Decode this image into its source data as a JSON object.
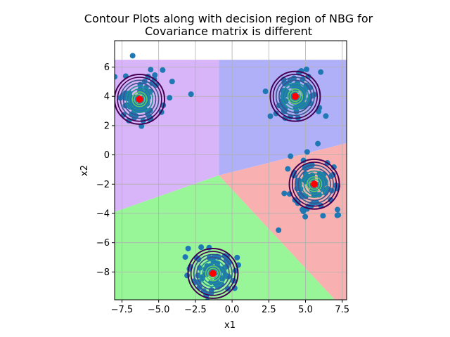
{
  "chart_data": {
    "type": "scatter",
    "title_line1": "Contour Plots along with decision region of NBG for",
    "title_line2": "Covariance matrix is different",
    "xlabel": "x1",
    "ylabel": "x2",
    "xlim": [
      -8.0,
      7.8
    ],
    "ylim": [
      -9.9,
      7.8
    ],
    "region_ylim_top": 6.5,
    "xticks": [
      -7.5,
      -5.0,
      -2.5,
      0.0,
      2.5,
      5.0,
      7.5
    ],
    "xtick_labels": [
      "−7.5",
      "−5.0",
      "−2.5",
      "0.0",
      "2.5",
      "5.0",
      "7.5"
    ],
    "yticks": [
      -8,
      -6,
      -4,
      -2,
      0,
      2,
      4,
      6
    ],
    "ytick_labels": [
      "−8",
      "−6",
      "−4",
      "−2",
      "0",
      "2",
      "4",
      "6"
    ],
    "grid": true,
    "classes": [
      {
        "region_color": "#d8b4f8",
        "mean": [
          -6.3,
          3.8
        ],
        "points_around_mean": true
      },
      {
        "region_color": "#b0b0f8",
        "mean": [
          4.3,
          4.0
        ],
        "points_around_mean": true
      },
      {
        "region_color": "#f8b0b0",
        "mean": [
          5.6,
          -2.0
        ],
        "points_around_mean": true
      },
      {
        "region_color": "#98f598",
        "mean": [
          -1.3,
          -8.1
        ],
        "points_around_mean": true
      }
    ],
    "point_color": "#1f77b4",
    "mean_marker_color": "#ff0000",
    "contour_colors": [
      "#440154",
      "#3b528b",
      "#21908d",
      "#5dc963",
      "#fde725"
    ]
  }
}
